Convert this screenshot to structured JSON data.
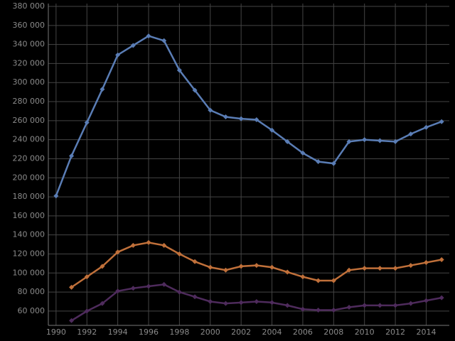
{
  "chart_data": {
    "type": "line",
    "x": [
      1990,
      1991,
      1992,
      1993,
      1994,
      1995,
      1996,
      1997,
      1998,
      1999,
      2000,
      2001,
      2002,
      2003,
      2004,
      2005,
      2006,
      2007,
      2008,
      2009,
      2010,
      2011,
      2012,
      2013,
      2014,
      2015
    ],
    "series": [
      {
        "color": "#5a7db5",
        "values": [
          181000,
          223000,
          258000,
          293000,
          329000,
          339000,
          349000,
          344000,
          313000,
          292000,
          271000,
          264000,
          262000,
          261000,
          250000,
          238000,
          226000,
          217000,
          215000,
          238000,
          240000,
          239000,
          238000,
          246000,
          253000,
          259000
        ]
      },
      {
        "color": "#c0703a",
        "values": [
          null,
          85000,
          96000,
          107000,
          122000,
          129000,
          132000,
          129000,
          120000,
          112000,
          106000,
          103000,
          107000,
          108000,
          106000,
          101000,
          96000,
          92000,
          92000,
          103000,
          105000,
          105000,
          105000,
          108000,
          111000,
          114000
        ]
      },
      {
        "color": "#4e2b5c",
        "values": [
          null,
          50000,
          60000,
          68000,
          81000,
          84000,
          86000,
          88000,
          80000,
          75000,
          70000,
          68000,
          69000,
          70000,
          69000,
          66000,
          62000,
          61000,
          61000,
          64000,
          66000,
          66000,
          66000,
          68000,
          71000,
          74000
        ]
      }
    ],
    "xlim": [
      1989.5,
      2015.5
    ],
    "xticks": [
      1990,
      1992,
      1994,
      1996,
      1998,
      2000,
      2002,
      2004,
      2006,
      2008,
      2010,
      2012,
      2014
    ],
    "ylim": [
      45000,
      383000
    ],
    "yticks": [
      {
        "value": 60000,
        "label": "60 000"
      },
      {
        "value": 80000,
        "label": "80 000"
      },
      {
        "value": 100000,
        "label": "100 000"
      },
      {
        "value": 120000,
        "label": "120 000"
      },
      {
        "value": 140000,
        "label": "140 000"
      },
      {
        "value": 160000,
        "label": "160 000"
      },
      {
        "value": 180000,
        "label": "180 000"
      },
      {
        "value": 200000,
        "label": "200 000"
      },
      {
        "value": 220000,
        "label": "220 000"
      },
      {
        "value": 240000,
        "label": "240 000"
      },
      {
        "value": 260000,
        "label": "260 000"
      },
      {
        "value": 280000,
        "label": "280 000"
      },
      {
        "value": 300000,
        "label": "300 000"
      },
      {
        "value": 320000,
        "label": "320 000"
      },
      {
        "value": 340000,
        "label": "340 000"
      },
      {
        "value": 360000,
        "label": "360 000"
      },
      {
        "value": 380000,
        "label": "380 000"
      }
    ],
    "grid": true
  }
}
